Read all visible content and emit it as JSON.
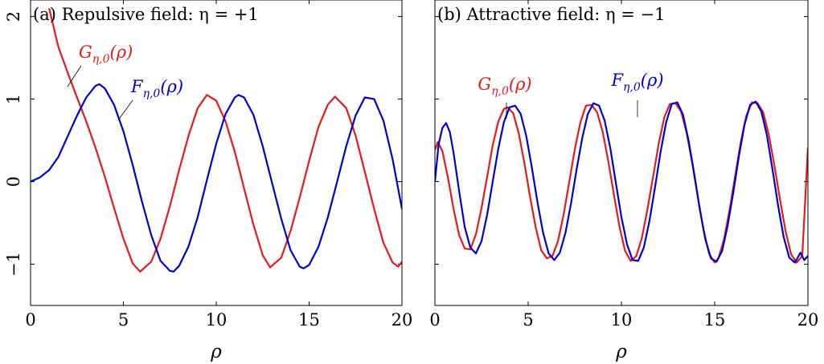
{
  "colors": {
    "G": "#e41a1c",
    "F": "#0000cc"
  },
  "chart_data": [
    {
      "type": "line",
      "title": "(a) Repulsive field: η = +1",
      "xlabel": "ρ",
      "ylabel": "",
      "xlim": [
        0,
        20
      ],
      "ylim": [
        -1.5,
        2.2
      ],
      "xticks": [
        "0",
        "5",
        "10",
        "15",
        "20"
      ],
      "yticks": [
        "2",
        "1",
        "0",
        "−1"
      ],
      "series": [
        {
          "name": "G_{η,0}(ρ)",
          "label_main": "G",
          "label_sub": "η,0",
          "label_arg": "(ρ)",
          "color_key": "G",
          "x": [
            1.0,
            1.5,
            2.0,
            2.5,
            3.0,
            3.5,
            4.0,
            4.5,
            5.0,
            5.5,
            5.9,
            6.5,
            7.0,
            7.5,
            8.0,
            8.5,
            9.0,
            9.5,
            10.0,
            10.5,
            11.0,
            11.5,
            12.0,
            12.5,
            12.9,
            13.5,
            14.0,
            14.5,
            15.0,
            15.5,
            16.0,
            16.4,
            17.0,
            17.5,
            18.0,
            18.5,
            19.0,
            19.5,
            19.8,
            20.0
          ],
          "y": [
            2.1,
            1.63,
            1.32,
            1.02,
            0.73,
            0.41,
            0.06,
            -0.32,
            -0.69,
            -0.99,
            -1.09,
            -0.97,
            -0.69,
            -0.3,
            0.14,
            0.55,
            0.89,
            1.05,
            0.98,
            0.73,
            0.36,
            -0.08,
            -0.52,
            -0.89,
            -1.04,
            -0.92,
            -0.6,
            -0.19,
            0.25,
            0.66,
            0.93,
            1.03,
            0.89,
            0.56,
            0.12,
            -0.33,
            -0.74,
            -0.98,
            -1.03,
            -0.97
          ]
        },
        {
          "name": "F_{η,0}(ρ)",
          "label_main": "F",
          "label_sub": "η,0",
          "label_arg": "(ρ)",
          "color_key": "F",
          "x": [
            0.0,
            0.5,
            1.0,
            1.5,
            2.0,
            2.5,
            3.0,
            3.5,
            3.7,
            4.0,
            4.5,
            5.0,
            5.5,
            6.0,
            6.5,
            7.0,
            7.5,
            7.7,
            8.0,
            8.5,
            9.0,
            9.5,
            10.0,
            10.5,
            11.0,
            11.2,
            11.5,
            12.0,
            12.5,
            13.0,
            13.5,
            14.0,
            14.5,
            14.7,
            15.0,
            15.5,
            16.0,
            16.5,
            17.0,
            17.5,
            18.0,
            18.5,
            19.0,
            19.5,
            20.0
          ],
          "y": [
            0.0,
            0.05,
            0.14,
            0.3,
            0.55,
            0.8,
            1.02,
            1.16,
            1.18,
            1.13,
            0.93,
            0.61,
            0.2,
            -0.24,
            -0.65,
            -0.96,
            -1.08,
            -1.09,
            -1.02,
            -0.79,
            -0.43,
            0.02,
            0.46,
            0.82,
            1.02,
            1.05,
            1.02,
            0.81,
            0.43,
            -0.01,
            -0.45,
            -0.83,
            -1.03,
            -1.05,
            -1.01,
            -0.79,
            -0.44,
            -0.01,
            0.43,
            0.8,
            1.02,
            1.0,
            0.74,
            0.27,
            -0.33
          ]
        }
      ]
    },
    {
      "type": "line",
      "title": "(b) Attractive field: η = −1",
      "xlabel": "ρ",
      "ylabel": "",
      "xlim": [
        0,
        20
      ],
      "ylim": [
        -1.5,
        2.2
      ],
      "xticks": [
        "0",
        "5",
        "10",
        "15",
        "20"
      ],
      "yticks": [],
      "series": [
        {
          "name": "G_{η,0}(ρ)",
          "label_main": "G",
          "label_sub": "η,0",
          "label_arg": "(ρ)",
          "color_key": "G",
          "x": [
            0.0,
            0.15,
            0.4,
            0.7,
            1.0,
            1.3,
            1.6,
            1.9,
            2.2,
            2.5,
            2.8,
            3.1,
            3.4,
            3.7,
            3.9,
            4.2,
            4.5,
            4.8,
            5.1,
            5.4,
            5.7,
            6.0,
            6.3,
            6.6,
            6.9,
            7.2,
            7.5,
            7.8,
            8.1,
            8.4,
            8.7,
            9.0,
            9.3,
            9.6,
            9.9,
            10.2,
            10.5,
            10.8,
            11.1,
            11.4,
            11.7,
            12.0,
            12.3,
            12.6,
            12.9,
            13.2,
            13.5,
            13.8,
            14.1,
            14.4,
            14.7,
            15.0,
            15.2,
            15.5,
            15.8,
            16.1,
            16.4,
            16.7,
            17.0,
            17.3,
            17.6,
            17.9,
            18.2,
            18.5,
            18.8,
            19.1,
            19.4,
            19.7,
            20.0
          ],
          "y": [
            0.38,
            0.48,
            0.37,
            0.05,
            -0.33,
            -0.65,
            -0.81,
            -0.82,
            -0.64,
            -0.32,
            0.06,
            0.44,
            0.73,
            0.88,
            0.9,
            0.83,
            0.58,
            0.22,
            -0.18,
            -0.55,
            -0.83,
            -0.93,
            -0.9,
            -0.72,
            -0.4,
            -0.01,
            0.39,
            0.72,
            0.92,
            0.93,
            0.84,
            0.6,
            0.24,
            -0.16,
            -0.55,
            -0.84,
            -0.96,
            -0.9,
            -0.68,
            -0.33,
            0.06,
            0.46,
            0.78,
            0.94,
            0.95,
            0.85,
            0.59,
            0.22,
            -0.19,
            -0.58,
            -0.87,
            -0.98,
            -0.93,
            -0.7,
            -0.34,
            0.07,
            0.48,
            0.8,
            0.96,
            0.95,
            0.84,
            0.57,
            0.2,
            -0.21,
            -0.6,
            -0.88,
            -0.98,
            -0.9,
            0.41
          ]
        },
        {
          "name": "F_{η,0}(ρ)",
          "label_main": "F",
          "label_sub": "η,0",
          "label_arg": "(ρ)",
          "color_key": "F",
          "x": [
            0.0,
            0.2,
            0.4,
            0.6,
            0.8,
            1.0,
            1.3,
            1.6,
            1.9,
            2.2,
            2.5,
            2.8,
            3.1,
            3.4,
            3.7,
            4.0,
            4.3,
            4.6,
            4.9,
            5.2,
            5.5,
            5.8,
            6.1,
            6.4,
            6.7,
            7.0,
            7.3,
            7.6,
            7.9,
            8.2,
            8.5,
            8.8,
            9.1,
            9.4,
            9.7,
            10.0,
            10.3,
            10.6,
            10.9,
            11.2,
            11.5,
            11.8,
            12.1,
            12.4,
            12.7,
            13.0,
            13.3,
            13.6,
            13.9,
            14.2,
            14.5,
            14.8,
            15.1,
            15.4,
            15.7,
            16.0,
            16.3,
            16.6,
            16.9,
            17.2,
            17.5,
            17.8,
            18.1,
            18.4,
            18.7,
            19.0,
            19.3,
            19.6,
            19.8,
            20.0
          ],
          "y": [
            0.0,
            0.45,
            0.65,
            0.71,
            0.6,
            0.35,
            -0.12,
            -0.55,
            -0.8,
            -0.87,
            -0.72,
            -0.4,
            0.0,
            0.4,
            0.72,
            0.9,
            0.92,
            0.82,
            0.55,
            0.17,
            -0.25,
            -0.62,
            -0.87,
            -0.95,
            -0.86,
            -0.62,
            -0.26,
            0.15,
            0.53,
            0.82,
            0.95,
            0.92,
            0.74,
            0.41,
            -0.01,
            -0.43,
            -0.76,
            -0.95,
            -0.96,
            -0.8,
            -0.48,
            -0.07,
            0.36,
            0.72,
            0.94,
            0.96,
            0.81,
            0.5,
            0.1,
            -0.33,
            -0.7,
            -0.93,
            -0.97,
            -0.84,
            -0.53,
            -0.13,
            0.31,
            0.69,
            0.93,
            0.97,
            0.85,
            0.56,
            0.15,
            -0.29,
            -0.67,
            -0.92,
            -0.98,
            -0.86,
            -0.95,
            -0.9
          ]
        }
      ]
    }
  ]
}
